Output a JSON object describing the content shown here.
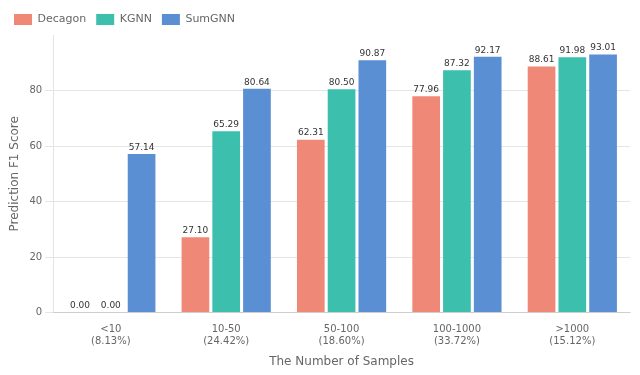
{
  "chart_data": {
    "type": "bar",
    "categories": [
      "<10\n(8.13%)",
      "10-50\n(24.42%)",
      "50-100\n(18.60%)",
      "100-1000\n(33.72%)",
      ">1000\n(15.12%)"
    ],
    "series": [
      {
        "name": "Decagon",
        "color": "#F08878",
        "values": [
          0.0,
          27.1,
          62.31,
          77.96,
          88.61
        ],
        "value_labels": [
          "0.00",
          "27.10",
          "62.31",
          "77.96",
          "88.61"
        ]
      },
      {
        "name": "KGNN",
        "color": "#3DBFAD",
        "values": [
          0.0,
          65.29,
          80.5,
          87.32,
          91.98
        ],
        "value_labels": [
          "0.00",
          "65.29",
          "80.50",
          "87.32",
          "91.98"
        ]
      },
      {
        "name": "SumGNN",
        "color": "#5B8FD4",
        "values": [
          57.14,
          80.64,
          90.87,
          92.17,
          93.01
        ],
        "value_labels": [
          "57.14",
          "80.64",
          "90.87",
          "92.17",
          "93.01"
        ]
      }
    ],
    "xlabel": "The Number of Samples",
    "ylabel": "Prediction F1 Score",
    "ylim": [
      0,
      100
    ],
    "yticks": [
      0,
      20,
      40,
      60,
      80
    ],
    "grid": true,
    "legend": "upper left",
    "data_labels": true
  }
}
